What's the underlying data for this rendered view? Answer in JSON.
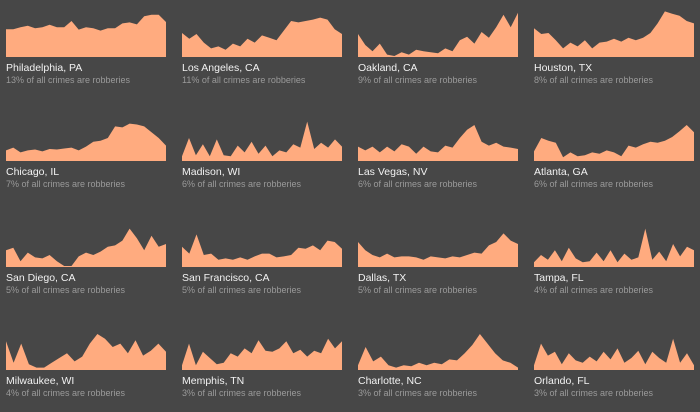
{
  "colors": {
    "background": "#474747",
    "area_fill": "#ffab7f",
    "city_text": "#f2f2f2",
    "caption_text": "#9a9a9a"
  },
  "chart_data": [
    {
      "type": "area",
      "title": "Philadelphia, PA",
      "subtitle": "13% of all crimes are robberies",
      "ylim": [
        0,
        100
      ],
      "values": [
        58,
        58,
        62,
        65,
        60,
        62,
        67,
        62,
        62,
        75,
        57,
        62,
        60,
        55,
        60,
        60,
        70,
        72,
        68,
        85,
        88,
        88,
        73
      ]
    },
    {
      "type": "area",
      "title": "Los Angeles, CA",
      "subtitle": "11% of all crimes are robberies",
      "ylim": [
        0,
        100
      ],
      "values": [
        50,
        38,
        48,
        30,
        18,
        22,
        15,
        28,
        22,
        38,
        30,
        45,
        40,
        35,
        55,
        75,
        72,
        75,
        78,
        82,
        78,
        58,
        48
      ]
    },
    {
      "type": "area",
      "title": "Oakland, CA",
      "subtitle": "9% of all crimes are robberies",
      "ylim": [
        0,
        100
      ],
      "values": [
        48,
        25,
        12,
        28,
        5,
        2,
        10,
        5,
        15,
        12,
        10,
        8,
        18,
        12,
        35,
        42,
        28,
        52,
        40,
        62,
        88,
        62,
        92
      ]
    },
    {
      "type": "area",
      "title": "Houston, TX",
      "subtitle": "8% of all crimes are robberies",
      "ylim": [
        0,
        100
      ],
      "values": [
        60,
        48,
        50,
        35,
        18,
        30,
        22,
        35,
        18,
        30,
        32,
        38,
        32,
        40,
        35,
        40,
        50,
        70,
        95,
        90,
        86,
        75,
        70
      ]
    },
    {
      "type": "area",
      "title": "Chicago, IL",
      "subtitle": "7% of all crimes are robberies",
      "ylim": [
        0,
        100
      ],
      "values": [
        22,
        28,
        18,
        22,
        24,
        20,
        25,
        24,
        26,
        28,
        22,
        30,
        40,
        42,
        48,
        72,
        70,
        78,
        76,
        72,
        60,
        48,
        32
      ]
    },
    {
      "type": "area",
      "title": "Madison, WI",
      "subtitle": "6% of all crimes are robberies",
      "ylim": [
        0,
        100
      ],
      "values": [
        10,
        48,
        12,
        35,
        10,
        45,
        12,
        10,
        32,
        18,
        40,
        15,
        32,
        10,
        22,
        18,
        35,
        28,
        82,
        25,
        38,
        28,
        45,
        30
      ]
    },
    {
      "type": "area",
      "title": "Las Vegas, NV",
      "subtitle": "6% of all crimes are robberies",
      "ylim": [
        0,
        100
      ],
      "values": [
        30,
        22,
        30,
        18,
        30,
        20,
        35,
        30,
        15,
        30,
        20,
        18,
        32,
        28,
        48,
        65,
        75,
        40,
        32,
        38,
        30,
        28,
        25
      ]
    },
    {
      "type": "area",
      "title": "Atlanta, GA",
      "subtitle": "6% of all crimes are robberies",
      "ylim": [
        0,
        100
      ],
      "values": [
        20,
        48,
        42,
        38,
        8,
        18,
        10,
        12,
        18,
        15,
        22,
        18,
        10,
        32,
        28,
        35,
        40,
        38,
        42,
        50,
        62,
        75,
        60
      ]
    },
    {
      "type": "area",
      "title": "San Diego, CA",
      "subtitle": "5% of all crimes are robberies",
      "ylim": [
        0,
        100
      ],
      "values": [
        35,
        40,
        12,
        30,
        20,
        18,
        25,
        12,
        2,
        2,
        22,
        30,
        25,
        32,
        42,
        45,
        55,
        80,
        60,
        35,
        65,
        42,
        48
      ]
    },
    {
      "type": "area",
      "title": "San Francisco, CA",
      "subtitle": "5% of all crimes are robberies",
      "ylim": [
        0,
        100
      ],
      "values": [
        42,
        28,
        68,
        25,
        28,
        15,
        18,
        15,
        20,
        15,
        22,
        28,
        28,
        20,
        22,
        25,
        40,
        38,
        45,
        35,
        55,
        52,
        38
      ]
    },
    {
      "type": "area",
      "title": "Dallas, TX",
      "subtitle": "5% of all crimes are robberies",
      "ylim": [
        0,
        100
      ],
      "values": [
        52,
        35,
        25,
        20,
        28,
        20,
        22,
        22,
        20,
        15,
        22,
        20,
        18,
        22,
        20,
        25,
        30,
        28,
        45,
        52,
        70,
        55,
        48
      ]
    },
    {
      "type": "area",
      "title": "Tampa, FL",
      "subtitle": "4% of all crimes are robberies",
      "ylim": [
        0,
        100
      ],
      "values": [
        10,
        25,
        15,
        35,
        12,
        40,
        18,
        10,
        12,
        30,
        12,
        35,
        10,
        28,
        15,
        20,
        80,
        15,
        32,
        12,
        48,
        22,
        42,
        35
      ]
    },
    {
      "type": "area",
      "title": "Milwaukee, WI",
      "subtitle": "4% of all crimes are robberies",
      "ylim": [
        0,
        100
      ],
      "values": [
        60,
        15,
        55,
        12,
        5,
        5,
        15,
        25,
        35,
        18,
        28,
        55,
        75,
        65,
        48,
        55,
        35,
        62,
        30,
        40,
        55,
        38
      ]
    },
    {
      "type": "area",
      "title": "Memphis, TN",
      "subtitle": "3% of all crimes are robberies",
      "ylim": [
        0,
        100
      ],
      "values": [
        10,
        55,
        10,
        38,
        25,
        12,
        15,
        35,
        28,
        45,
        35,
        62,
        40,
        38,
        45,
        60,
        35,
        42,
        28,
        40,
        35,
        65,
        45,
        60
      ]
    },
    {
      "type": "area",
      "title": "Charlotte, NC",
      "subtitle": "3% of all crimes are robberies",
      "ylim": [
        0,
        100
      ],
      "values": [
        10,
        48,
        18,
        28,
        10,
        5,
        10,
        8,
        15,
        10,
        15,
        12,
        22,
        20,
        35,
        52,
        75,
        55,
        35,
        20,
        15,
        5
      ]
    },
    {
      "type": "area",
      "title": "Orlando, FL",
      "subtitle": "3% of all crimes are robberies",
      "ylim": [
        0,
        100
      ],
      "values": [
        10,
        55,
        30,
        38,
        12,
        35,
        20,
        15,
        28,
        18,
        38,
        22,
        45,
        15,
        25,
        40,
        12,
        38,
        25,
        15,
        65,
        15,
        35,
        10
      ]
    }
  ]
}
